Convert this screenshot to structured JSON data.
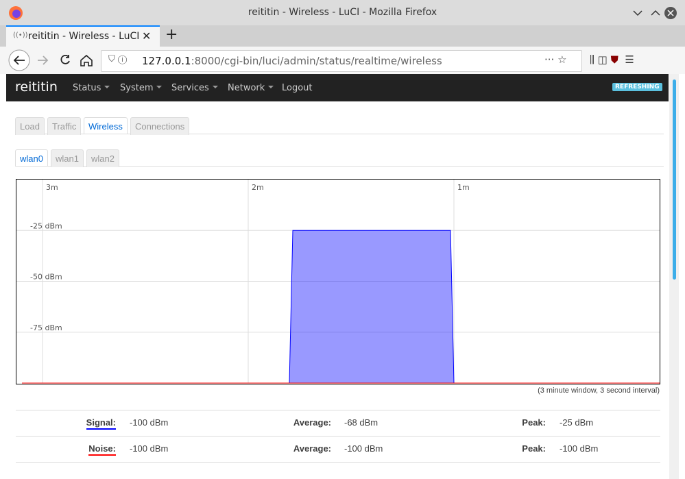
{
  "window": {
    "title": "reititin - Wireless - LuCI - Mozilla Firefox"
  },
  "tab": {
    "title": "reititin - Wireless - LuCI"
  },
  "urlbar": {
    "host": "127.0.0.1",
    "path": ":8000/cgi-bin/luci/admin/status/realtime/wireless"
  },
  "header": {
    "brand": "reititin",
    "menu": [
      "Status",
      "System",
      "Services",
      "Network",
      "Logout"
    ],
    "badge": "REFRESHING"
  },
  "tabs": [
    "Load",
    "Traffic",
    "Wireless",
    "Connections"
  ],
  "subtabs": [
    "wlan0",
    "wlan1",
    "wlan2"
  ],
  "graph": {
    "type": "area",
    "x": [
      -186,
      -108,
      -107,
      -61,
      -60,
      0
    ],
    "series": [
      {
        "color": "#0000ff",
        "values": [
          -100,
          -100,
          -25,
          -25,
          -100,
          -100
        ]
      },
      {
        "color": "#ff0000",
        "values": [
          -100,
          -100,
          -100,
          -100,
          -100,
          -100
        ]
      }
    ],
    "xlim": [
      -187.6,
      0
    ],
    "ylim": [
      -100,
      0
    ],
    "xticks": [
      {
        "value": -180,
        "label": "3m"
      },
      {
        "value": -120,
        "label": "2m"
      },
      {
        "value": -60,
        "label": "1m"
      }
    ],
    "yticks": [
      {
        "value": -25,
        "label": "-25 dBm"
      },
      {
        "value": -50,
        "label": "-50 dBm"
      },
      {
        "value": -75,
        "label": "-75 dBm"
      }
    ],
    "grid": true
  },
  "caption": "(3 minute window, 3 second interval)",
  "stats": [
    {
      "label": "Signal:",
      "color": "#0000ff",
      "value": "-100 dBm",
      "avg_label": "Average:",
      "avg": "-68 dBm",
      "peak_label": "Peak:",
      "peak": "-25 dBm"
    },
    {
      "label": "Noise:",
      "color": "#ff0000",
      "value": "-100 dBm",
      "avg_label": "Average:",
      "avg": "-100 dBm",
      "peak_label": "Peak:",
      "peak": "-100 dBm"
    }
  ]
}
